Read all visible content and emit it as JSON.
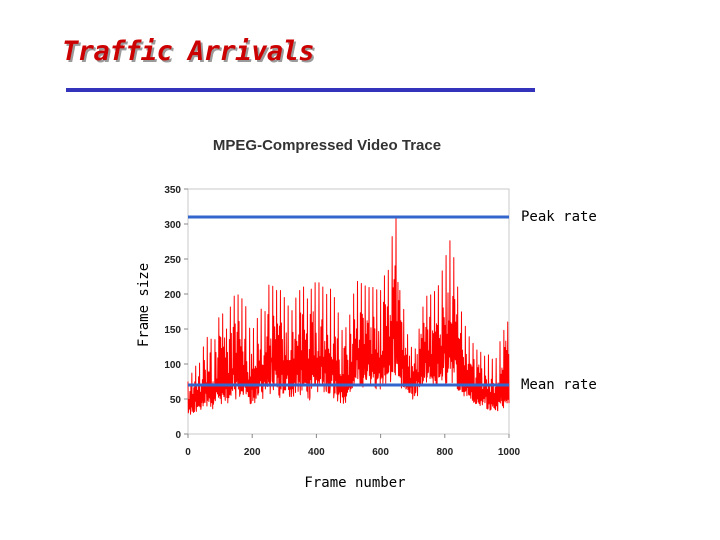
{
  "slide": {
    "title": "Traffic Arrivals",
    "title_color": "#cc0000",
    "rule_color": "#3333bb"
  },
  "chart_data": {
    "type": "line",
    "title": "MPEG-Compressed Video Trace",
    "xlabel": "Frame number",
    "ylabel": "Frame size",
    "xlim": [
      0,
      1000
    ],
    "ylim": [
      0,
      350
    ],
    "x_ticks": [
      0,
      200,
      400,
      600,
      800,
      1000
    ],
    "y_ticks": [
      0,
      50,
      100,
      150,
      200,
      250,
      300,
      350
    ],
    "grid": false,
    "series": [
      {
        "color": "#ff0000",
        "x": [
          0,
          10,
          20,
          30,
          40,
          50,
          60,
          70,
          80,
          90,
          100,
          110,
          120,
          130,
          140,
          150,
          160,
          170,
          180,
          190,
          200,
          210,
          220,
          230,
          240,
          250,
          260,
          270,
          280,
          290,
          300,
          310,
          320,
          330,
          340,
          350,
          360,
          370,
          380,
          390,
          400,
          410,
          420,
          430,
          440,
          450,
          460,
          470,
          480,
          490,
          500,
          510,
          520,
          530,
          540,
          550,
          560,
          570,
          580,
          590,
          600,
          610,
          620,
          630,
          640,
          650,
          660,
          670,
          680,
          690,
          700,
          710,
          720,
          730,
          740,
          750,
          760,
          770,
          780,
          790,
          800,
          810,
          820,
          830,
          840,
          850,
          860,
          870,
          880,
          890,
          900,
          910,
          920,
          930,
          940,
          950,
          960,
          970,
          980,
          990,
          1000
        ],
        "peaks": [
          75,
          85,
          95,
          100,
          102,
          130,
          138,
          140,
          118,
          160,
          170,
          172,
          150,
          178,
          195,
          200,
          198,
          192,
          182,
          152,
          148,
          155,
          172,
          180,
          175,
          212,
          215,
          205,
          205,
          205,
          195,
          185,
          175,
          178,
          205,
          205,
          210,
          190,
          205,
          210,
          220,
          215,
          210,
          198,
          205,
          210,
          185,
          170,
          148,
          150,
          160,
          185,
          210,
          220,
          215,
          212,
          210,
          208,
          210,
          205,
          205,
          225,
          230,
          240,
          310,
          310,
          205,
          185,
          150,
          130,
          120,
          122,
          150,
          178,
          195,
          200,
          198,
          205,
          212,
          230,
          245,
          270,
          280,
          245,
          210,
          178,
          160,
          145,
          135,
          128,
          120,
          118,
          112,
          110,
          115,
          105,
          108,
          130,
          140,
          160,
          160
        ],
        "troughs": [
          22,
          22,
          24,
          28,
          28,
          30,
          32,
          34,
          30,
          33,
          36,
          36,
          34,
          36,
          40,
          42,
          40,
          38,
          36,
          34,
          34,
          36,
          40,
          42,
          44,
          46,
          48,
          46,
          44,
          42,
          40,
          42,
          44,
          46,
          48,
          46,
          44,
          42,
          40,
          40,
          44,
          48,
          52,
          50,
          46,
          44,
          42,
          38,
          36,
          36,
          38,
          44,
          50,
          55,
          58,
          60,
          62,
          60,
          58,
          56,
          56,
          58,
          62,
          64,
          65,
          64,
          60,
          56,
          52,
          48,
          46,
          48,
          52,
          56,
          60,
          62,
          62,
          60,
          58,
          56,
          56,
          60,
          62,
          60,
          56,
          52,
          48,
          44,
          42,
          40,
          38,
          36,
          34,
          32,
          30,
          28,
          28,
          28,
          30,
          30,
          30
        ]
      }
    ],
    "reference_lines": [
      {
        "name": "Peak rate",
        "y": 310,
        "color": "#3366cc"
      },
      {
        "name": "Mean rate",
        "y": 70,
        "color": "#3366cc"
      }
    ]
  }
}
